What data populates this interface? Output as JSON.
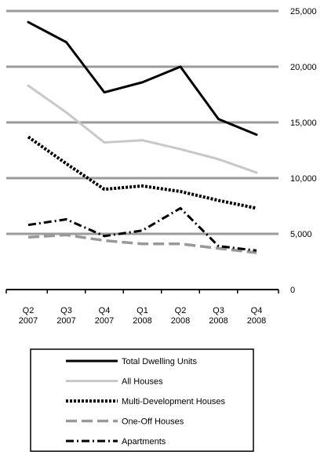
{
  "chart_data": {
    "type": "line",
    "categories": [
      "Q2 2007",
      "Q3 2007",
      "Q4 2007",
      "Q1 2008",
      "Q2 2008",
      "Q3 2008",
      "Q4 2008"
    ],
    "category_lines": [
      [
        "Q2",
        "2007"
      ],
      [
        "Q3",
        "2007"
      ],
      [
        "Q4",
        "2007"
      ],
      [
        "Q1",
        "2008"
      ],
      [
        "Q2",
        "2008"
      ],
      [
        "Q3",
        "2008"
      ],
      [
        "Q4",
        "2008"
      ]
    ],
    "y_ticks": [
      0,
      5000,
      10000,
      15000,
      20000,
      25000
    ],
    "y_tick_labels": [
      "0",
      "5,000",
      "10,000",
      "15,000",
      "20,000",
      "25,000"
    ],
    "ylim": [
      0,
      25000
    ],
    "yaxis_side": "right",
    "grid": true,
    "legend_position": "bottom",
    "series": [
      {
        "name": "Total Dwelling Units",
        "values": [
          24000,
          22200,
          17700,
          18600,
          20000,
          15300,
          13900
        ],
        "color": "#000000",
        "style": "solid"
      },
      {
        "name": "All Houses",
        "values": [
          18300,
          15900,
          13200,
          13400,
          12600,
          11700,
          10500
        ],
        "color": "#c8c8c8",
        "style": "solid"
      },
      {
        "name": "Multi-Development Houses",
        "values": [
          13700,
          11300,
          9000,
          9300,
          8800,
          8000,
          7300
        ],
        "color": "#000000",
        "style": "dotted-heavy"
      },
      {
        "name": "One-Off Houses",
        "values": [
          4700,
          4900,
          4400,
          4100,
          4100,
          3700,
          3300
        ],
        "color": "#999999",
        "style": "dashed"
      },
      {
        "name": "Apartments",
        "values": [
          5800,
          6300,
          4800,
          5300,
          7300,
          3900,
          3500
        ],
        "color": "#000000",
        "style": "dash-dot"
      }
    ]
  }
}
